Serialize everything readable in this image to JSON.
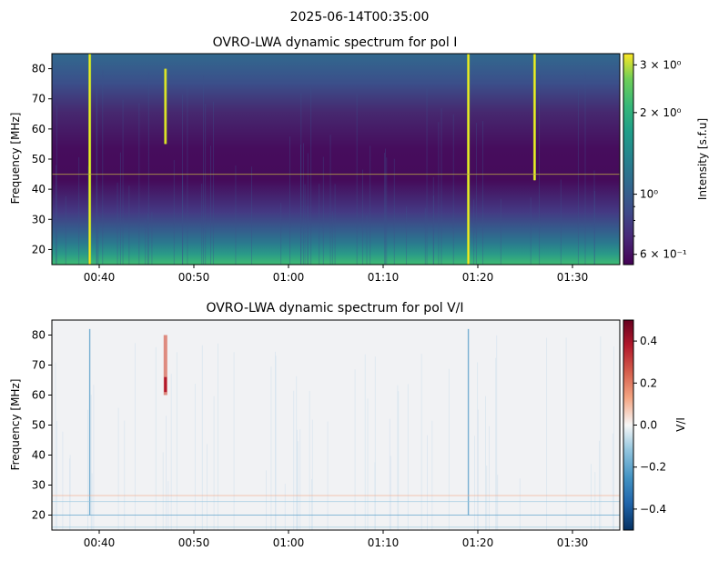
{
  "suptitle": "2025-06-14T00:35:00",
  "chart_data": [
    {
      "type": "heatmap",
      "title": "OVRO-LWA dynamic spectrum for pol I",
      "ylabel": "Frequency [MHz]",
      "xlabel": "",
      "x_range": [
        "00:35",
        "01:35"
      ],
      "ylim": [
        15,
        85
      ],
      "x_ticks": [
        "00:40",
        "00:50",
        "01:00",
        "01:10",
        "01:20",
        "01:30"
      ],
      "y_ticks": [
        20,
        30,
        40,
        50,
        60,
        70,
        80
      ],
      "colormap": "viridis",
      "colorbar": {
        "label": "Intensity [s.f.u]",
        "scale": "log",
        "range": [
          0.55,
          3.3
        ],
        "ticks": [
          {
            "value": 0.6,
            "label": "6 × 10⁻¹"
          },
          {
            "value": 1.0,
            "label": "10⁰"
          },
          {
            "value": 2.0,
            "label": "2 × 10⁰"
          },
          {
            "value": 3.0,
            "label": "3 × 10⁰"
          }
        ]
      },
      "features": [
        {
          "kind": "burst",
          "time": "00:39",
          "freq_range": [
            15,
            85
          ]
        },
        {
          "kind": "burst",
          "time": "00:47",
          "freq_range": [
            55,
            80
          ]
        },
        {
          "kind": "burst",
          "time": "01:19",
          "freq_range": [
            15,
            85
          ]
        },
        {
          "kind": "burst",
          "time": "01:26",
          "freq_range": [
            43,
            85
          ]
        },
        {
          "kind": "rfi_line",
          "freq": 45
        }
      ]
    },
    {
      "type": "heatmap",
      "title": "OVRO-LWA dynamic spectrum for pol V/I",
      "ylabel": "Frequency [MHz]",
      "xlabel": "",
      "x_range": [
        "00:35",
        "01:35"
      ],
      "ylim": [
        15,
        85
      ],
      "x_ticks": [
        "00:40",
        "00:50",
        "01:00",
        "01:10",
        "01:20",
        "01:30"
      ],
      "y_ticks": [
        20,
        30,
        40,
        50,
        60,
        70,
        80
      ],
      "colormap": "RdBu_r",
      "colorbar": {
        "label": "V/I",
        "scale": "linear",
        "range": [
          -0.5,
          0.5
        ],
        "ticks": [
          {
            "value": 0.4,
            "label": "0.4"
          },
          {
            "value": 0.2,
            "label": "0.2"
          },
          {
            "value": 0.0,
            "label": "0.0"
          },
          {
            "value": -0.2,
            "label": "−0.2"
          },
          {
            "value": -0.4,
            "label": "−0.4"
          }
        ]
      },
      "features": [
        {
          "kind": "positive_patch",
          "time": "00:47",
          "freq_range": [
            60,
            80
          ]
        },
        {
          "kind": "negative_line",
          "time": "01:19",
          "freq_range": [
            20,
            82
          ]
        },
        {
          "kind": "negative_line",
          "time": "00:39",
          "freq_range": [
            20,
            82
          ]
        }
      ]
    }
  ]
}
